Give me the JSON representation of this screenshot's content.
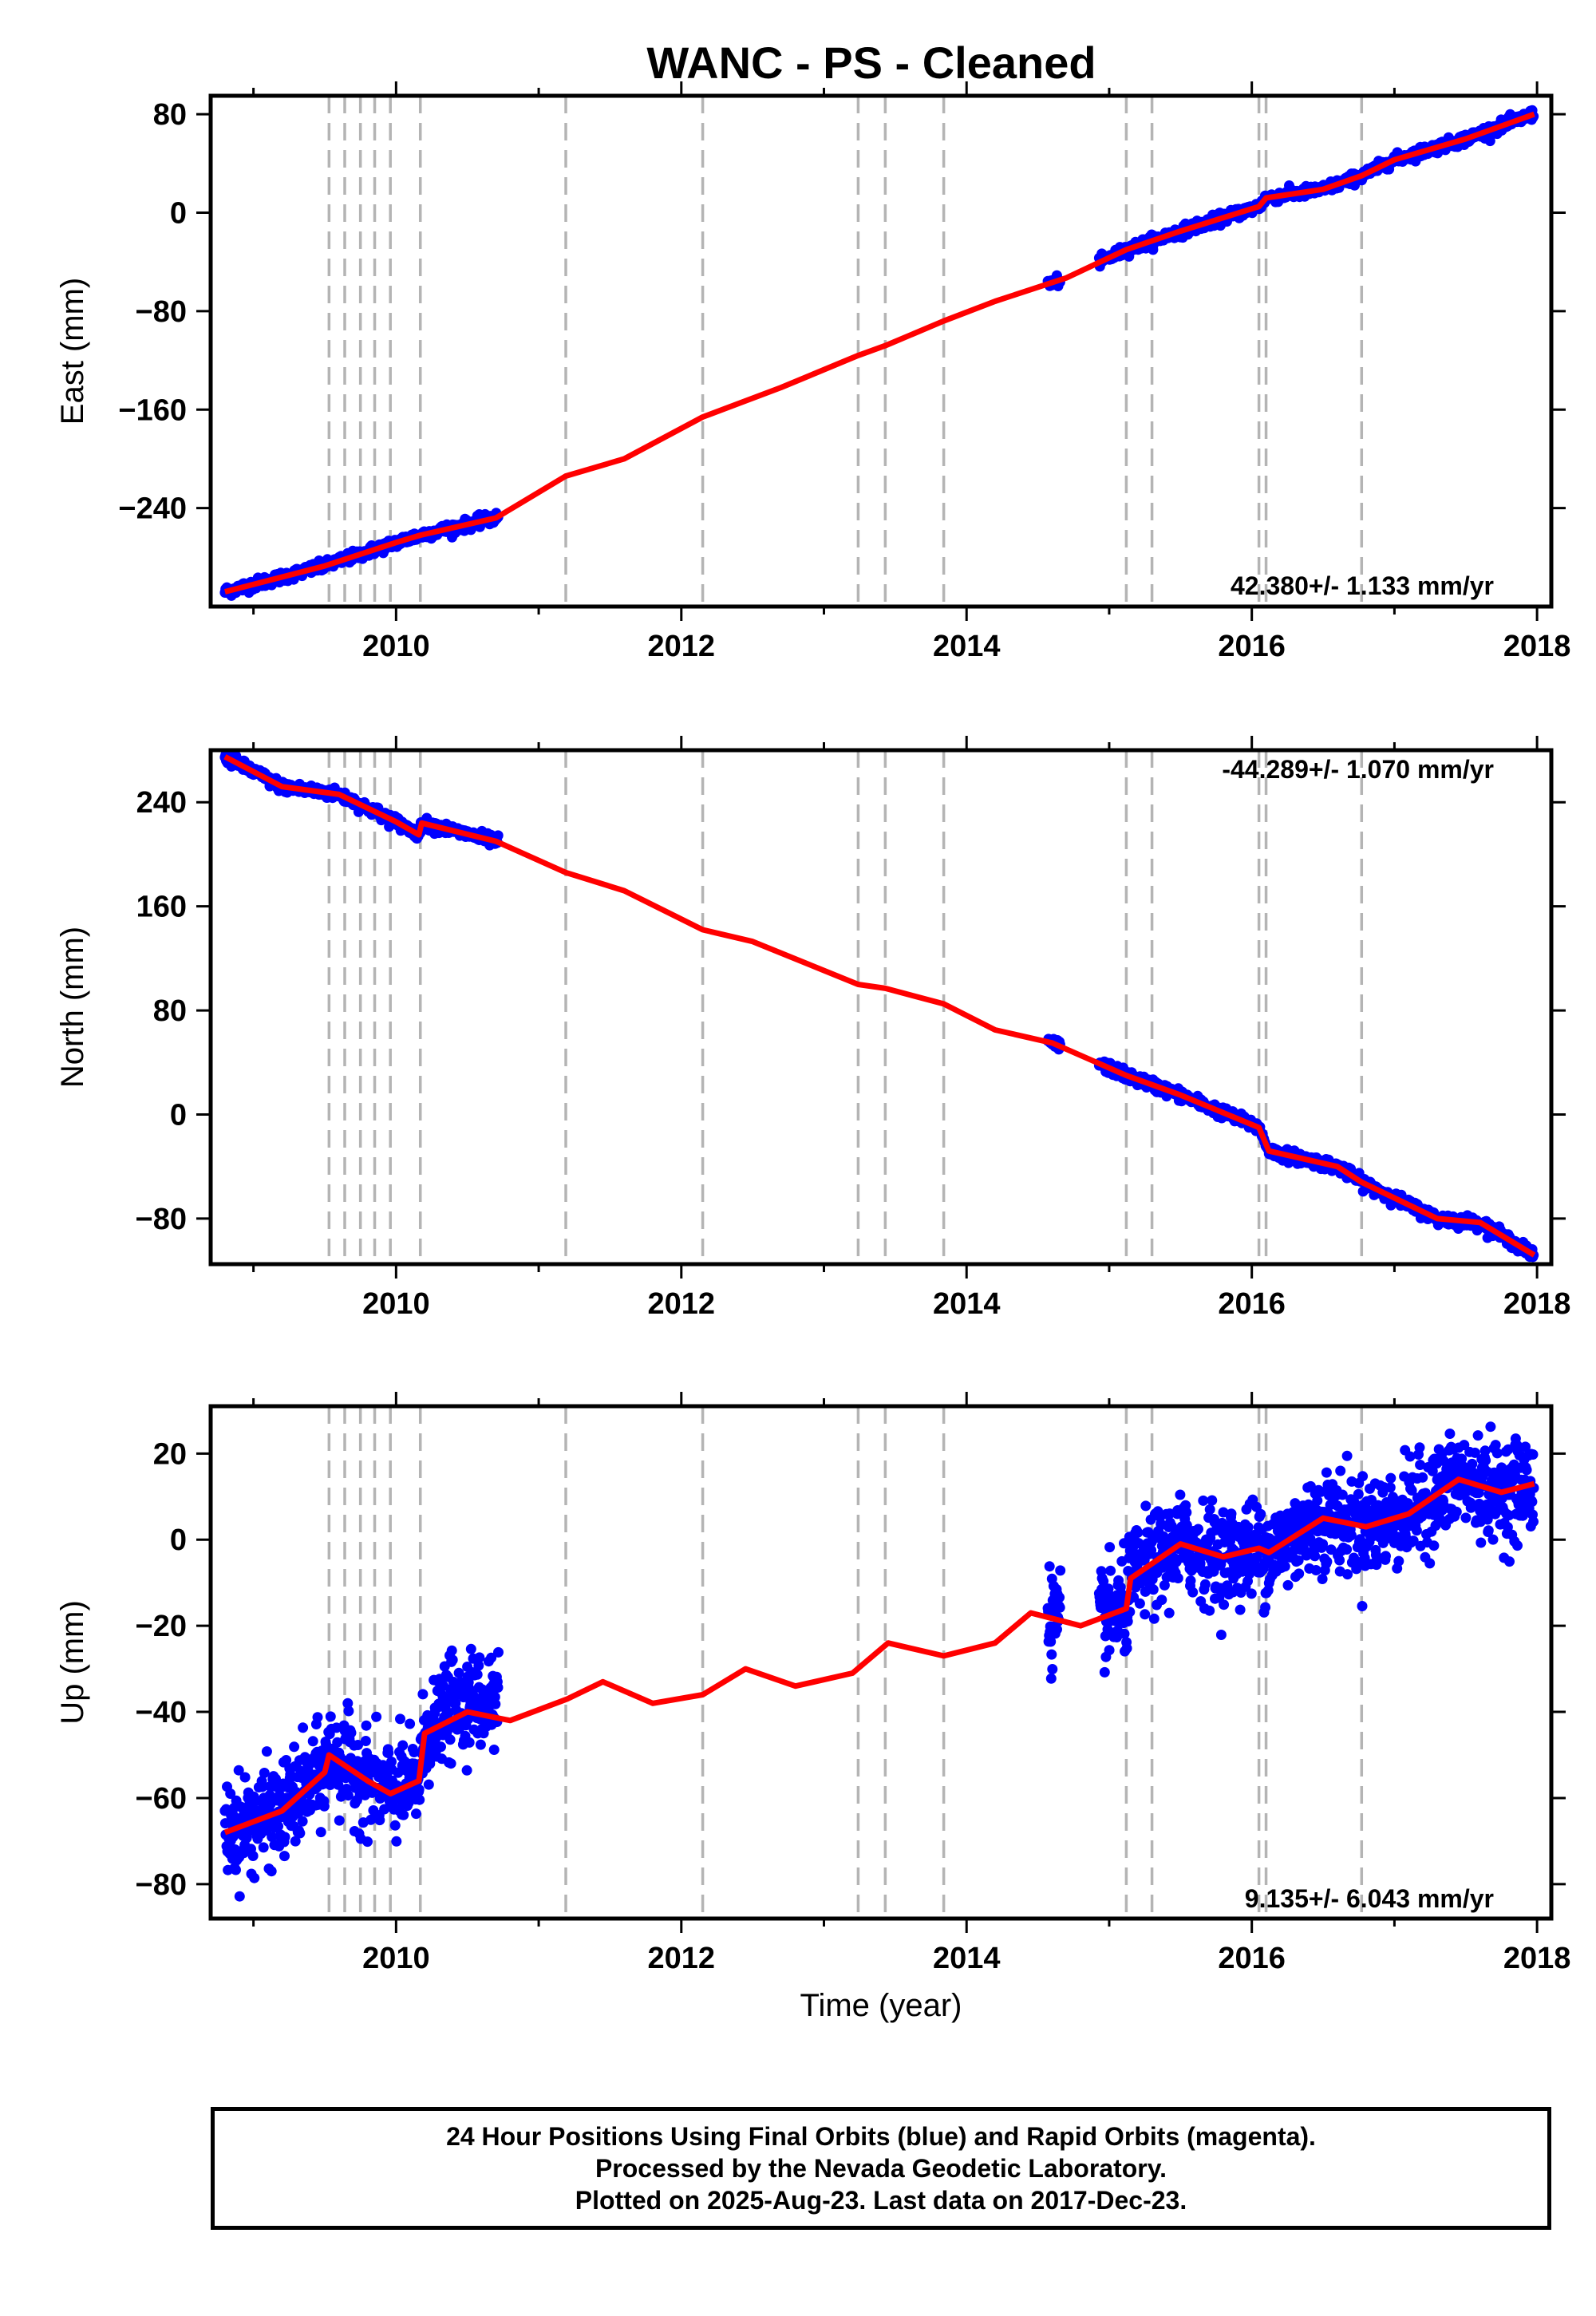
{
  "figure": {
    "title": "WANC  - PS - Cleaned"
  },
  "chart_data": [
    {
      "type": "scatter",
      "panel": "east",
      "ylabel": "East (mm)",
      "xlabel": "",
      "xlim": [
        2008.7,
        2018.1
      ],
      "ylim": [
        -320,
        95
      ],
      "xticks": [
        2010,
        2012,
        2014,
        2016,
        2018
      ],
      "yticks": [
        -240,
        -160,
        -80,
        0,
        80
      ],
      "rate_label": "42.380+/- 1.133 mm/yr",
      "grid": false,
      "event_lines": [
        2009.53,
        2009.64,
        2009.75,
        2009.85,
        2009.96,
        2010.17,
        2011.19,
        2012.15,
        2013.24,
        2013.43,
        2013.84,
        2015.12,
        2015.3,
        2016.05,
        2016.1,
        2016.77
      ],
      "segments": [
        [
          2008.8,
          2010.72
        ],
        [
          2014.57,
          2014.66
        ],
        [
          2014.93,
          2017.98
        ]
      ],
      "model": [
        [
          2008.8,
          -308
        ],
        [
          2009.5,
          -287
        ],
        [
          2010.0,
          -268
        ],
        [
          2010.17,
          -262
        ],
        [
          2010.7,
          -248
        ],
        [
          2011.19,
          -214
        ],
        [
          2011.6,
          -200
        ],
        [
          2012.15,
          -166
        ],
        [
          2012.7,
          -142
        ],
        [
          2013.24,
          -116
        ],
        [
          2013.43,
          -108
        ],
        [
          2013.84,
          -88
        ],
        [
          2014.2,
          -72
        ],
        [
          2014.7,
          -53
        ],
        [
          2015.12,
          -30
        ],
        [
          2015.5,
          -15
        ],
        [
          2016.05,
          5
        ],
        [
          2016.1,
          12
        ],
        [
          2016.5,
          19
        ],
        [
          2016.77,
          30
        ],
        [
          2017.0,
          43
        ],
        [
          2017.5,
          60
        ],
        [
          2017.98,
          80
        ]
      ],
      "series": [
        {
          "name": "Final Orbits (blue)",
          "color": "#0000ff",
          "mark": "points"
        },
        {
          "name": "model",
          "color": "#ff0000",
          "mark": "line"
        }
      ]
    },
    {
      "type": "scatter",
      "panel": "north",
      "ylabel": "North (mm)",
      "xlabel": "",
      "xlim": [
        2008.7,
        2018.1
      ],
      "ylim": [
        -115,
        280
      ],
      "xticks": [
        2010,
        2012,
        2014,
        2016,
        2018
      ],
      "yticks": [
        -80,
        0,
        80,
        160,
        240
      ],
      "rate_label": "-44.289+/- 1.070 mm/yr",
      "grid": false,
      "event_lines": [
        2009.53,
        2009.64,
        2009.75,
        2009.85,
        2009.96,
        2010.17,
        2011.19,
        2012.15,
        2013.24,
        2013.43,
        2013.84,
        2015.12,
        2015.3,
        2016.05,
        2016.1,
        2016.77
      ],
      "segments": [
        [
          2008.8,
          2010.72
        ],
        [
          2014.57,
          2014.66
        ],
        [
          2014.93,
          2017.98
        ]
      ],
      "model": [
        [
          2008.8,
          275
        ],
        [
          2009.2,
          252
        ],
        [
          2009.6,
          246
        ],
        [
          2010.0,
          225
        ],
        [
          2010.16,
          215
        ],
        [
          2010.18,
          224
        ],
        [
          2010.7,
          210
        ],
        [
          2011.19,
          186
        ],
        [
          2011.6,
          172
        ],
        [
          2012.15,
          142
        ],
        [
          2012.5,
          133
        ],
        [
          2013.24,
          100
        ],
        [
          2013.43,
          97
        ],
        [
          2013.84,
          85
        ],
        [
          2014.2,
          65
        ],
        [
          2014.6,
          55
        ],
        [
          2015.12,
          30
        ],
        [
          2015.5,
          15
        ],
        [
          2016.05,
          -10
        ],
        [
          2016.12,
          -28
        ],
        [
          2016.6,
          -40
        ],
        [
          2016.77,
          -52
        ],
        [
          2017.3,
          -80
        ],
        [
          2017.6,
          -83
        ],
        [
          2017.98,
          -108
        ]
      ],
      "series": [
        {
          "name": "Final Orbits (blue)",
          "color": "#0000ff",
          "mark": "points"
        },
        {
          "name": "model",
          "color": "#ff0000",
          "mark": "line"
        }
      ]
    },
    {
      "type": "scatter",
      "panel": "up",
      "ylabel": "Up (mm)",
      "xlabel": "Time (year)",
      "xlim": [
        2008.7,
        2018.1
      ],
      "ylim": [
        -88,
        31
      ],
      "xticks": [
        2010,
        2012,
        2014,
        2016,
        2018
      ],
      "yticks": [
        -80,
        -60,
        -40,
        -20,
        0,
        20
      ],
      "rate_label": "9.135+/- 6.043 mm/yr",
      "grid": false,
      "event_lines": [
        2009.53,
        2009.64,
        2009.75,
        2009.85,
        2009.96,
        2010.17,
        2011.19,
        2012.15,
        2013.24,
        2013.43,
        2013.84,
        2015.12,
        2015.3,
        2016.05,
        2016.1,
        2016.77
      ],
      "segments": [
        [
          2008.8,
          2010.72
        ],
        [
          2014.57,
          2014.66
        ],
        [
          2014.93,
          2017.98
        ]
      ],
      "model": [
        [
          2008.8,
          -68
        ],
        [
          2009.2,
          -63
        ],
        [
          2009.5,
          -54
        ],
        [
          2009.53,
          -50
        ],
        [
          2009.8,
          -56
        ],
        [
          2009.96,
          -59
        ],
        [
          2010.16,
          -56
        ],
        [
          2010.2,
          -45
        ],
        [
          2010.5,
          -40
        ],
        [
          2010.8,
          -42
        ],
        [
          2011.2,
          -37
        ],
        [
          2011.45,
          -33
        ],
        [
          2011.8,
          -38
        ],
        [
          2012.15,
          -36
        ],
        [
          2012.45,
          -30
        ],
        [
          2012.8,
          -34
        ],
        [
          2013.2,
          -31
        ],
        [
          2013.45,
          -24
        ],
        [
          2013.84,
          -27
        ],
        [
          2014.2,
          -24
        ],
        [
          2014.45,
          -17
        ],
        [
          2014.8,
          -20
        ],
        [
          2015.12,
          -16
        ],
        [
          2015.15,
          -9
        ],
        [
          2015.5,
          -1
        ],
        [
          2015.8,
          -4
        ],
        [
          2016.05,
          -2
        ],
        [
          2016.12,
          -3
        ],
        [
          2016.5,
          5
        ],
        [
          2016.8,
          3
        ],
        [
          2017.1,
          6
        ],
        [
          2017.45,
          14
        ],
        [
          2017.75,
          11
        ],
        [
          2017.98,
          13
        ]
      ],
      "series": [
        {
          "name": "Final Orbits (blue)",
          "color": "#0000ff",
          "mark": "points"
        },
        {
          "name": "model",
          "color": "#ff0000",
          "mark": "line"
        }
      ]
    }
  ],
  "footer": {
    "line1": "24 Hour Positions Using Final Orbits (blue) and Rapid Orbits (magenta).",
    "line2": "Processed by the Nevada Geodetic Laboratory.",
    "line3": "Plotted on 2025-Aug-23. Last data on 2017-Dec-23."
  }
}
